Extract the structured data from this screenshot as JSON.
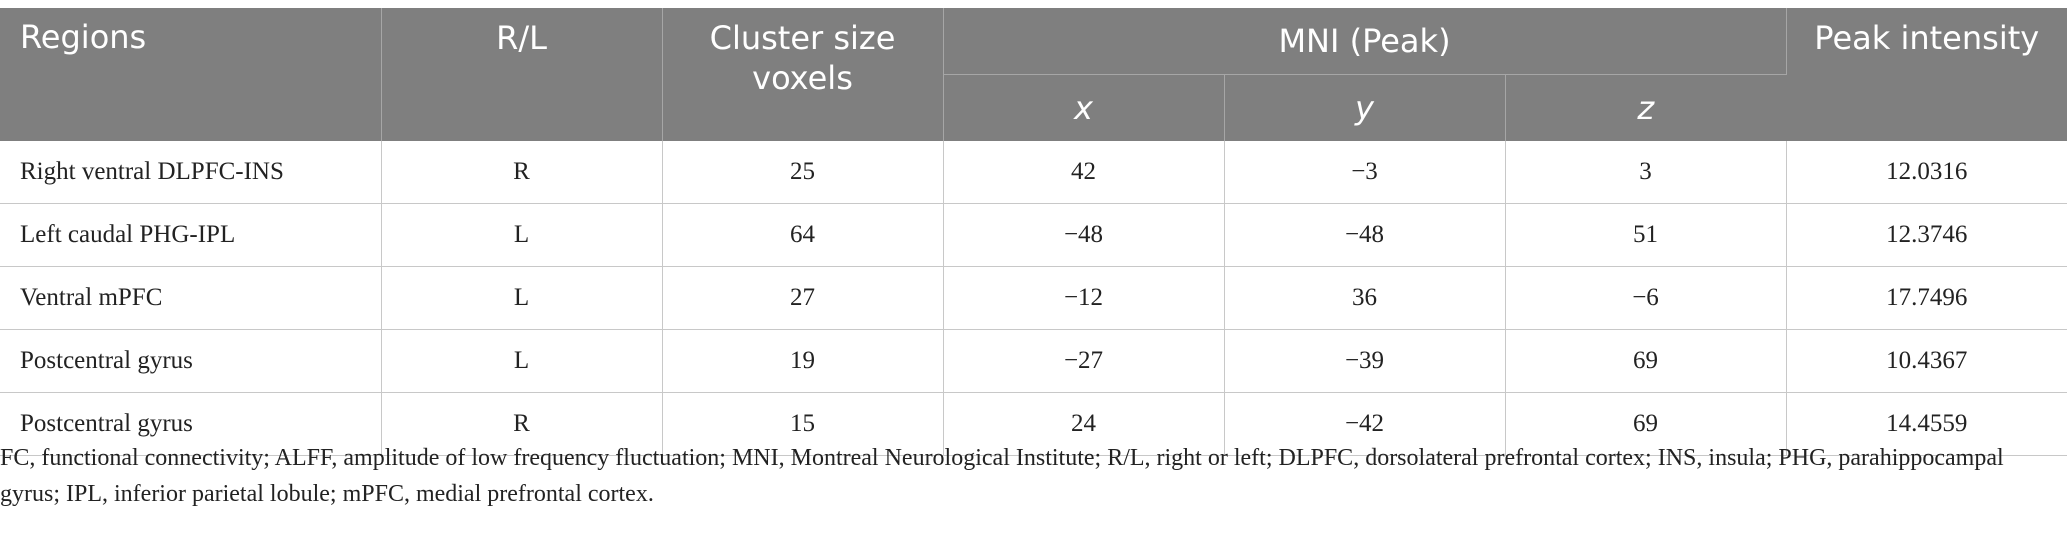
{
  "table": {
    "headers": {
      "regions": "Regions",
      "rl": "R/L",
      "cluster": "Cluster size voxels",
      "mni": "MNI (Peak)",
      "x": "x",
      "y": "y",
      "z": "z",
      "peak": "Peak intensity"
    },
    "rows": [
      {
        "region": "Right ventral DLPFC-INS",
        "rl": "R",
        "cluster": "25",
        "x": "42",
        "y": "−3",
        "z": "3",
        "peak": "12.0316"
      },
      {
        "region": "Left caudal PHG-IPL",
        "rl": "L",
        "cluster": "64",
        "x": "−48",
        "y": "−48",
        "z": "51",
        "peak": "12.3746"
      },
      {
        "region": "Ventral mPFC",
        "rl": "L",
        "cluster": "27",
        "x": "−12",
        "y": "36",
        "z": "−6",
        "peak": "17.7496"
      },
      {
        "region": "Postcentral gyrus",
        "rl": "L",
        "cluster": "19",
        "x": "−27",
        "y": "−39",
        "z": "69",
        "peak": "10.4367"
      },
      {
        "region": "Postcentral gyrus",
        "rl": "R",
        "cluster": "15",
        "x": "24",
        "y": "−42",
        "z": "69",
        "peak": "14.4559"
      }
    ]
  },
  "footnote": "FC, functional connectivity; ALFF, amplitude of low frequency fluctuation; MNI, Montreal Neurological Institute; R/L, right or left; DLPFC, dorsolateral prefrontal cortex; INS, insula; PHG, parahippocampal gyrus; IPL, inferior parietal lobule; mPFC, medial prefrontal cortex."
}
